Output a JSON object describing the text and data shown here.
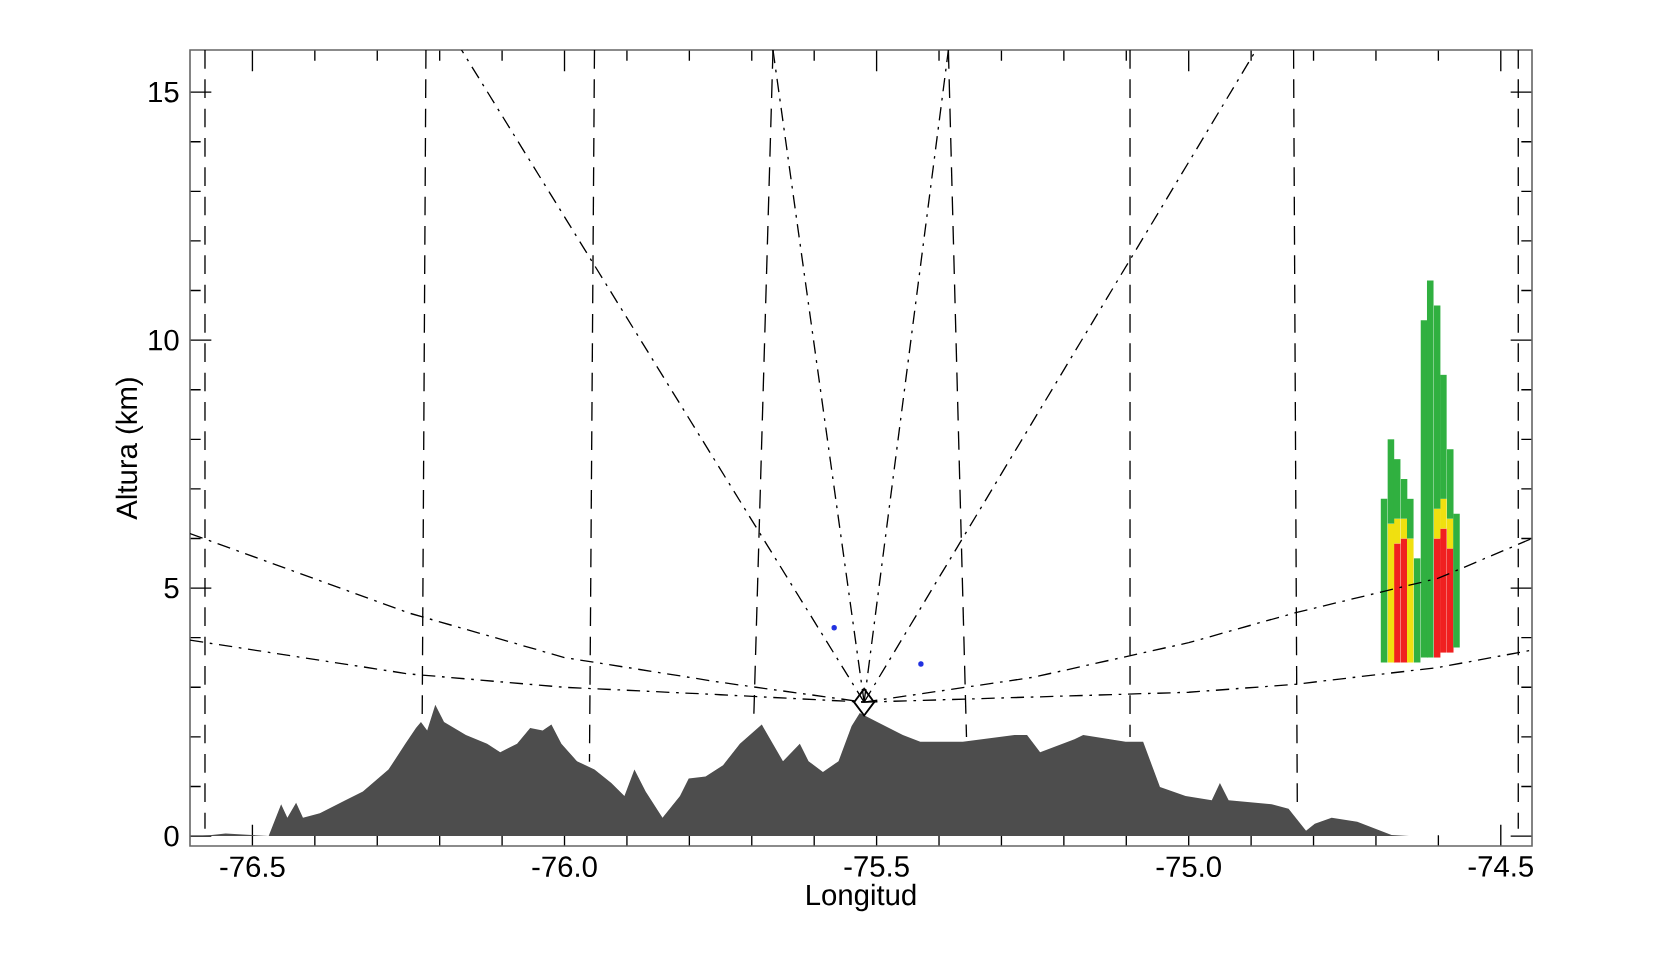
{
  "chart_data": {
    "type": "line",
    "xlabel": "Longitud",
    "ylabel": "Altura (km)",
    "xlim": [
      -76.6,
      -74.45
    ],
    "ylim": [
      -0.2,
      15.85
    ],
    "xticks": [
      {
        "value": -76.5,
        "label": "-76.5"
      },
      {
        "value": -76.0,
        "label": "-76.0"
      },
      {
        "value": -75.5,
        "label": "-75.5"
      },
      {
        "value": -75.0,
        "label": "-75.0"
      },
      {
        "value": -74.5,
        "label": "-74.5"
      }
    ],
    "yticks": [
      0,
      5,
      10,
      15
    ],
    "series": [
      {
        "type": "area",
        "color": "#4d4d4d",
        "x": [
          -76.58,
          -76.543,
          -76.474,
          -76.454,
          -76.444,
          -76.43,
          -76.419,
          -76.392,
          -76.351,
          -76.323,
          -76.282,
          -76.255,
          -76.238,
          -76.23,
          -76.22,
          -76.207,
          -76.193,
          -76.158,
          -76.124,
          -76.103,
          -76.076,
          -76.055,
          -76.035,
          -76.021,
          -76.005,
          -75.98,
          -75.952,
          -75.925,
          -75.904,
          -75.888,
          -75.87,
          -75.843,
          -75.815,
          -75.801,
          -75.774,
          -75.746,
          -75.719,
          -75.684,
          -75.65,
          -75.623,
          -75.609,
          -75.586,
          -75.561,
          -75.54,
          -75.527,
          -75.499,
          -75.458,
          -75.43,
          -75.362,
          -75.279,
          -75.259,
          -75.238,
          -75.183,
          -75.169,
          -75.101,
          -75.073,
          -75.046,
          -75.005,
          -74.963,
          -74.95,
          -74.936,
          -74.867,
          -74.84,
          -74.812,
          -74.798,
          -74.771,
          -74.73,
          -74.675,
          -74.647,
          -74.537,
          -74.469
        ],
        "values": [
          0,
          0.05,
          0,
          0.64,
          0.37,
          0.67,
          0.37,
          0.46,
          0.72,
          0.9,
          1.34,
          1.86,
          2.18,
          2.3,
          2.13,
          2.65,
          2.3,
          2.04,
          1.86,
          1.69,
          1.86,
          2.18,
          2.13,
          2.25,
          1.86,
          1.51,
          1.34,
          1.07,
          0.81,
          1.34,
          0.9,
          0.37,
          0.81,
          1.16,
          1.2,
          1.43,
          1.86,
          2.25,
          1.51,
          1.86,
          1.51,
          1.29,
          1.51,
          2.22,
          2.48,
          2.3,
          2.04,
          1.9,
          1.9,
          2.04,
          2.04,
          1.69,
          1.95,
          2.04,
          1.9,
          1.9,
          0.99,
          0.81,
          0.72,
          1.07,
          0.72,
          0.64,
          0.55,
          0.11,
          0.25,
          0.37,
          0.29,
          0.02,
          0,
          0,
          0
        ]
      },
      {
        "line_style": "dashed",
        "color": "#000000",
        "x": [
          -76.576,
          -76.576
        ],
        "values": [
          15.85,
          0.15
        ]
      },
      {
        "line_style": "dashed",
        "color": "#000000",
        "x": [
          -76.222,
          -76.228
        ],
        "values": [
          15.85,
          2.4
        ]
      },
      {
        "line_style": "dashed",
        "color": "#000000",
        "x": [
          -75.952,
          -75.96
        ],
        "values": [
          15.85,
          1.5
        ]
      },
      {
        "line_style": "dashed",
        "color": "#000000",
        "x": [
          -75.666,
          -75.697
        ],
        "values": [
          15.85,
          2.3
        ]
      },
      {
        "line_style": "dashed",
        "color": "#000000",
        "x": [
          -75.385,
          -75.356
        ],
        "values": [
          15.85,
          2.0
        ]
      },
      {
        "line_style": "dashed",
        "color": "#000000",
        "x": [
          -75.094,
          -75.094
        ],
        "values": [
          15.85,
          2.0
        ]
      },
      {
        "line_style": "dashed",
        "color": "#000000",
        "x": [
          -74.832,
          -74.826
        ],
        "values": [
          15.85,
          0.6
        ]
      },
      {
        "line_style": "dashed",
        "color": "#000000",
        "x": [
          -74.472,
          -74.472
        ],
        "values": [
          15.85,
          0.15
        ]
      },
      {
        "line_style": "dashdot",
        "color": "#000000",
        "x": [
          -76.6,
          -76.25,
          -76.0,
          -75.75,
          -75.52
        ],
        "values": [
          6.1,
          4.5,
          3.6,
          3.1,
          2.7
        ]
      },
      {
        "line_style": "dashdot",
        "color": "#000000",
        "x": [
          -76.6,
          -76.25,
          -76.0,
          -75.75,
          -75.52
        ],
        "values": [
          3.95,
          3.27,
          3.0,
          2.85,
          2.7
        ]
      },
      {
        "line_style": "dashdot",
        "color": "#000000",
        "x": [
          -75.52,
          -75.25,
          -75.0,
          -74.83,
          -74.6,
          -74.45
        ],
        "values": [
          2.7,
          3.2,
          3.9,
          4.5,
          5.2,
          6.0
        ]
      },
      {
        "line_style": "dashdot",
        "color": "#000000",
        "x": [
          -75.52,
          -75.0,
          -74.83,
          -74.6,
          -74.45
        ],
        "values": [
          2.7,
          2.9,
          3.06,
          3.4,
          3.75
        ]
      },
      {
        "line_style": "dashdot",
        "color": "#000000",
        "x": [
          -75.52,
          -76.165
        ],
        "values": [
          2.7,
          15.85
        ]
      },
      {
        "line_style": "dashdot",
        "color": "#000000",
        "x": [
          -75.52,
          -75.666
        ],
        "values": [
          2.7,
          15.85
        ]
      },
      {
        "line_style": "dashdot",
        "color": "#000000",
        "x": [
          -75.52,
          -75.385
        ],
        "values": [
          2.7,
          15.85
        ]
      },
      {
        "line_style": "dashdot",
        "color": "#000000",
        "x": [
          -75.52,
          -74.892
        ],
        "values": [
          2.7,
          15.85
        ]
      },
      {
        "type": "bar",
        "color": "#f02020",
        "x": [
          -74.666,
          -74.655,
          -74.602,
          -74.592,
          -74.581
        ],
        "base": [
          3.5,
          3.5,
          3.6,
          3.7,
          3.7
        ],
        "values": [
          2.4,
          2.5,
          2.4,
          2.5,
          2.1
        ]
      },
      {
        "type": "bar",
        "color": "#f0e010",
        "x": [
          -74.676,
          -74.666,
          -74.655,
          -74.645,
          -74.602,
          -74.592,
          -74.581
        ],
        "base": [
          3.5,
          5.9,
          6.0,
          3.5,
          6.0,
          6.2,
          5.8
        ],
        "values": [
          2.8,
          0.5,
          0.4,
          2.5,
          0.6,
          0.6,
          0.6
        ]
      },
      {
        "type": "bar",
        "color": "#30b040",
        "x": [
          -74.687,
          -74.676,
          -74.666,
          -74.655,
          -74.645,
          -74.634,
          -74.623,
          -74.613,
          -74.602,
          -74.592,
          -74.581,
          -74.571
        ],
        "base": [
          3.5,
          6.3,
          6.4,
          6.4,
          6.0,
          3.5,
          3.6,
          3.6,
          6.6,
          6.8,
          6.4,
          3.8
        ],
        "values": [
          3.3,
          1.7,
          1.2,
          0.8,
          0.8,
          2.1,
          6.8,
          7.6,
          4.1,
          2.5,
          1.4,
          2.7
        ]
      },
      {
        "type": "scatter",
        "marker": "diamond",
        "color": "#000000",
        "x": [
          -75.52
        ],
        "values": [
          2.7
        ]
      },
      {
        "type": "scatter",
        "marker": "circle",
        "color": "#2030e0",
        "x": [
          -75.568,
          -75.429
        ],
        "values": [
          4.2,
          3.47
        ]
      }
    ]
  }
}
